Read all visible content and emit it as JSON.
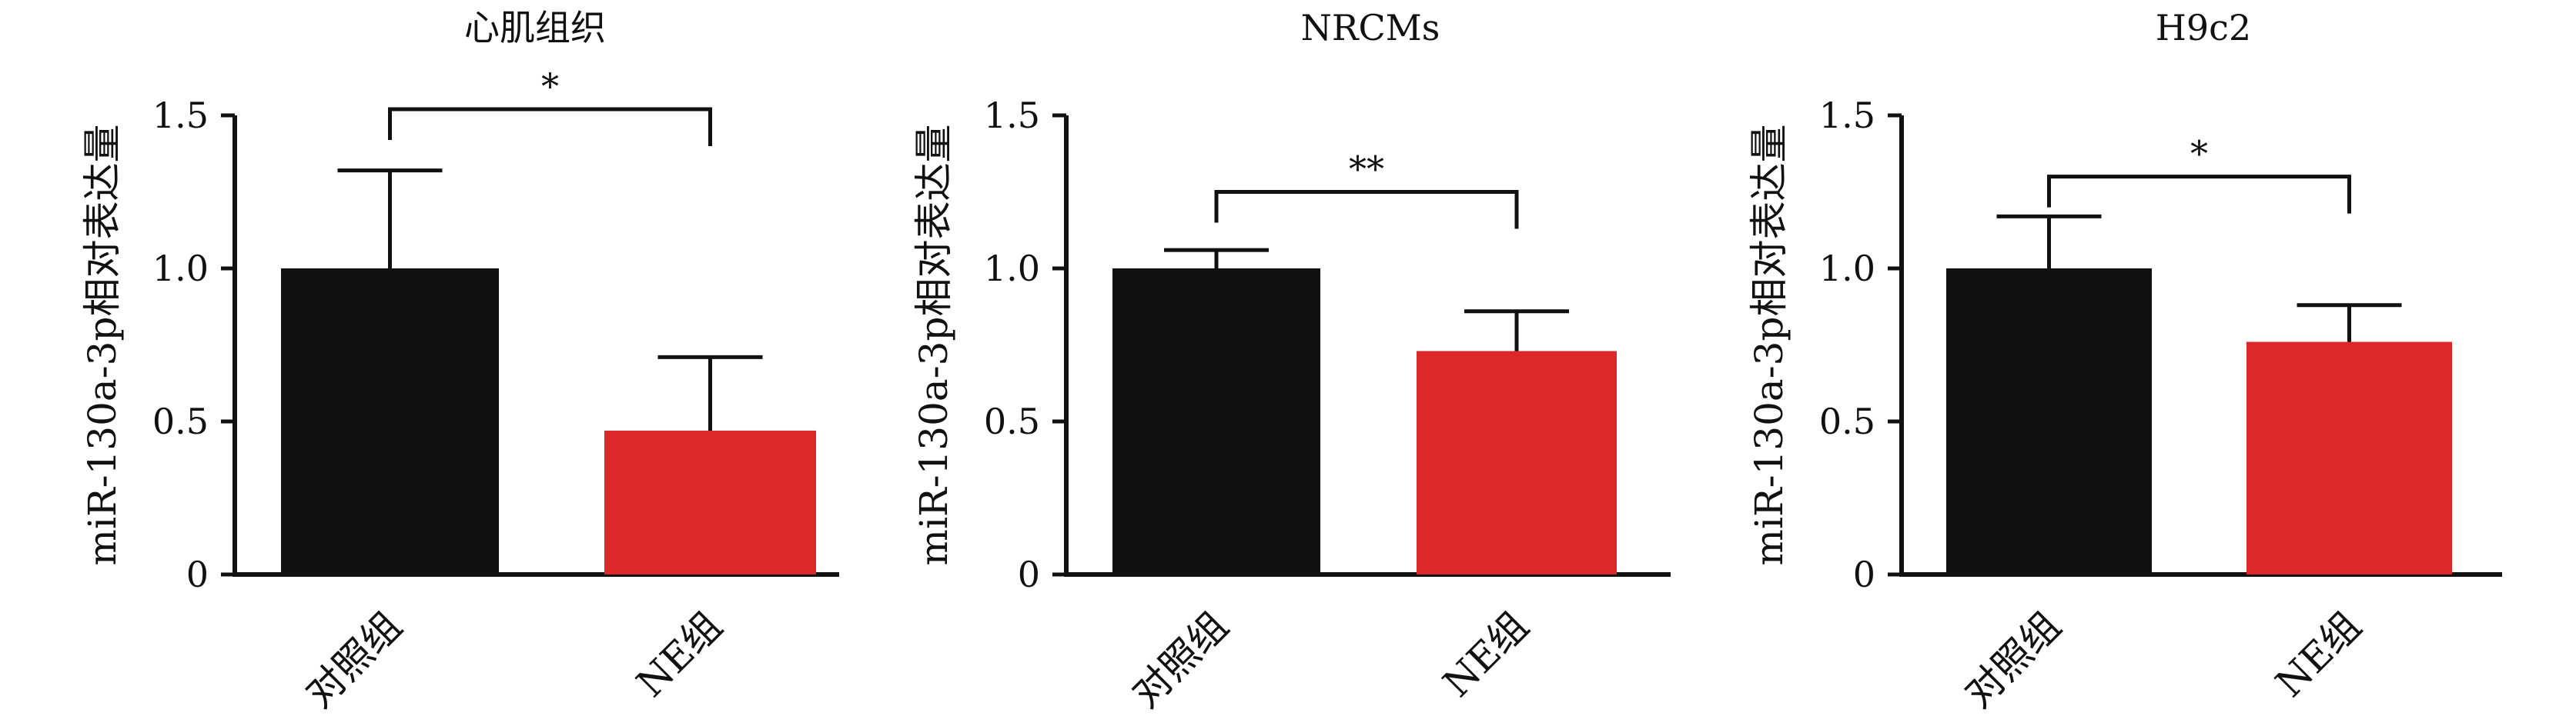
{
  "chart_data": [
    {
      "type": "bar",
      "title": "心肌组织",
      "ylabel": "miR-130a-3p相对表达量",
      "ylim": [
        0,
        1.5
      ],
      "yticks": [
        "0",
        "0.5",
        "1.0",
        "1.5"
      ],
      "categories": [
        "对照组",
        "NE组"
      ],
      "values": [
        1.0,
        0.47
      ],
      "errors": [
        0.32,
        0.24
      ],
      "colors": [
        "#111111",
        "#DC2828"
      ],
      "significance": {
        "label": "*",
        "bracket_y": 1.52
      }
    },
    {
      "type": "bar",
      "title": "NRCMs",
      "ylabel": "miR-130a-3p相对表达量",
      "ylim": [
        0,
        1.5
      ],
      "yticks": [
        "0",
        "0.5",
        "1.0",
        "1.5"
      ],
      "categories": [
        "对照组",
        "NE组"
      ],
      "values": [
        1.0,
        0.73
      ],
      "errors": [
        0.06,
        0.13
      ],
      "colors": [
        "#111111",
        "#DC2828"
      ],
      "significance": {
        "label": "**",
        "bracket_y": 1.25
      }
    },
    {
      "type": "bar",
      "title": "H9c2",
      "ylabel": "miR-130a-3p相对表达量",
      "ylim": [
        0,
        1.5
      ],
      "yticks": [
        "0",
        "0.5",
        "1.0",
        "1.5"
      ],
      "categories": [
        "对照组",
        "NE组"
      ],
      "values": [
        1.0,
        0.76
      ],
      "errors": [
        0.17,
        0.12
      ],
      "colors": [
        "#111111",
        "#DC2828"
      ],
      "significance": {
        "label": "*",
        "bracket_y": 1.3
      }
    }
  ]
}
